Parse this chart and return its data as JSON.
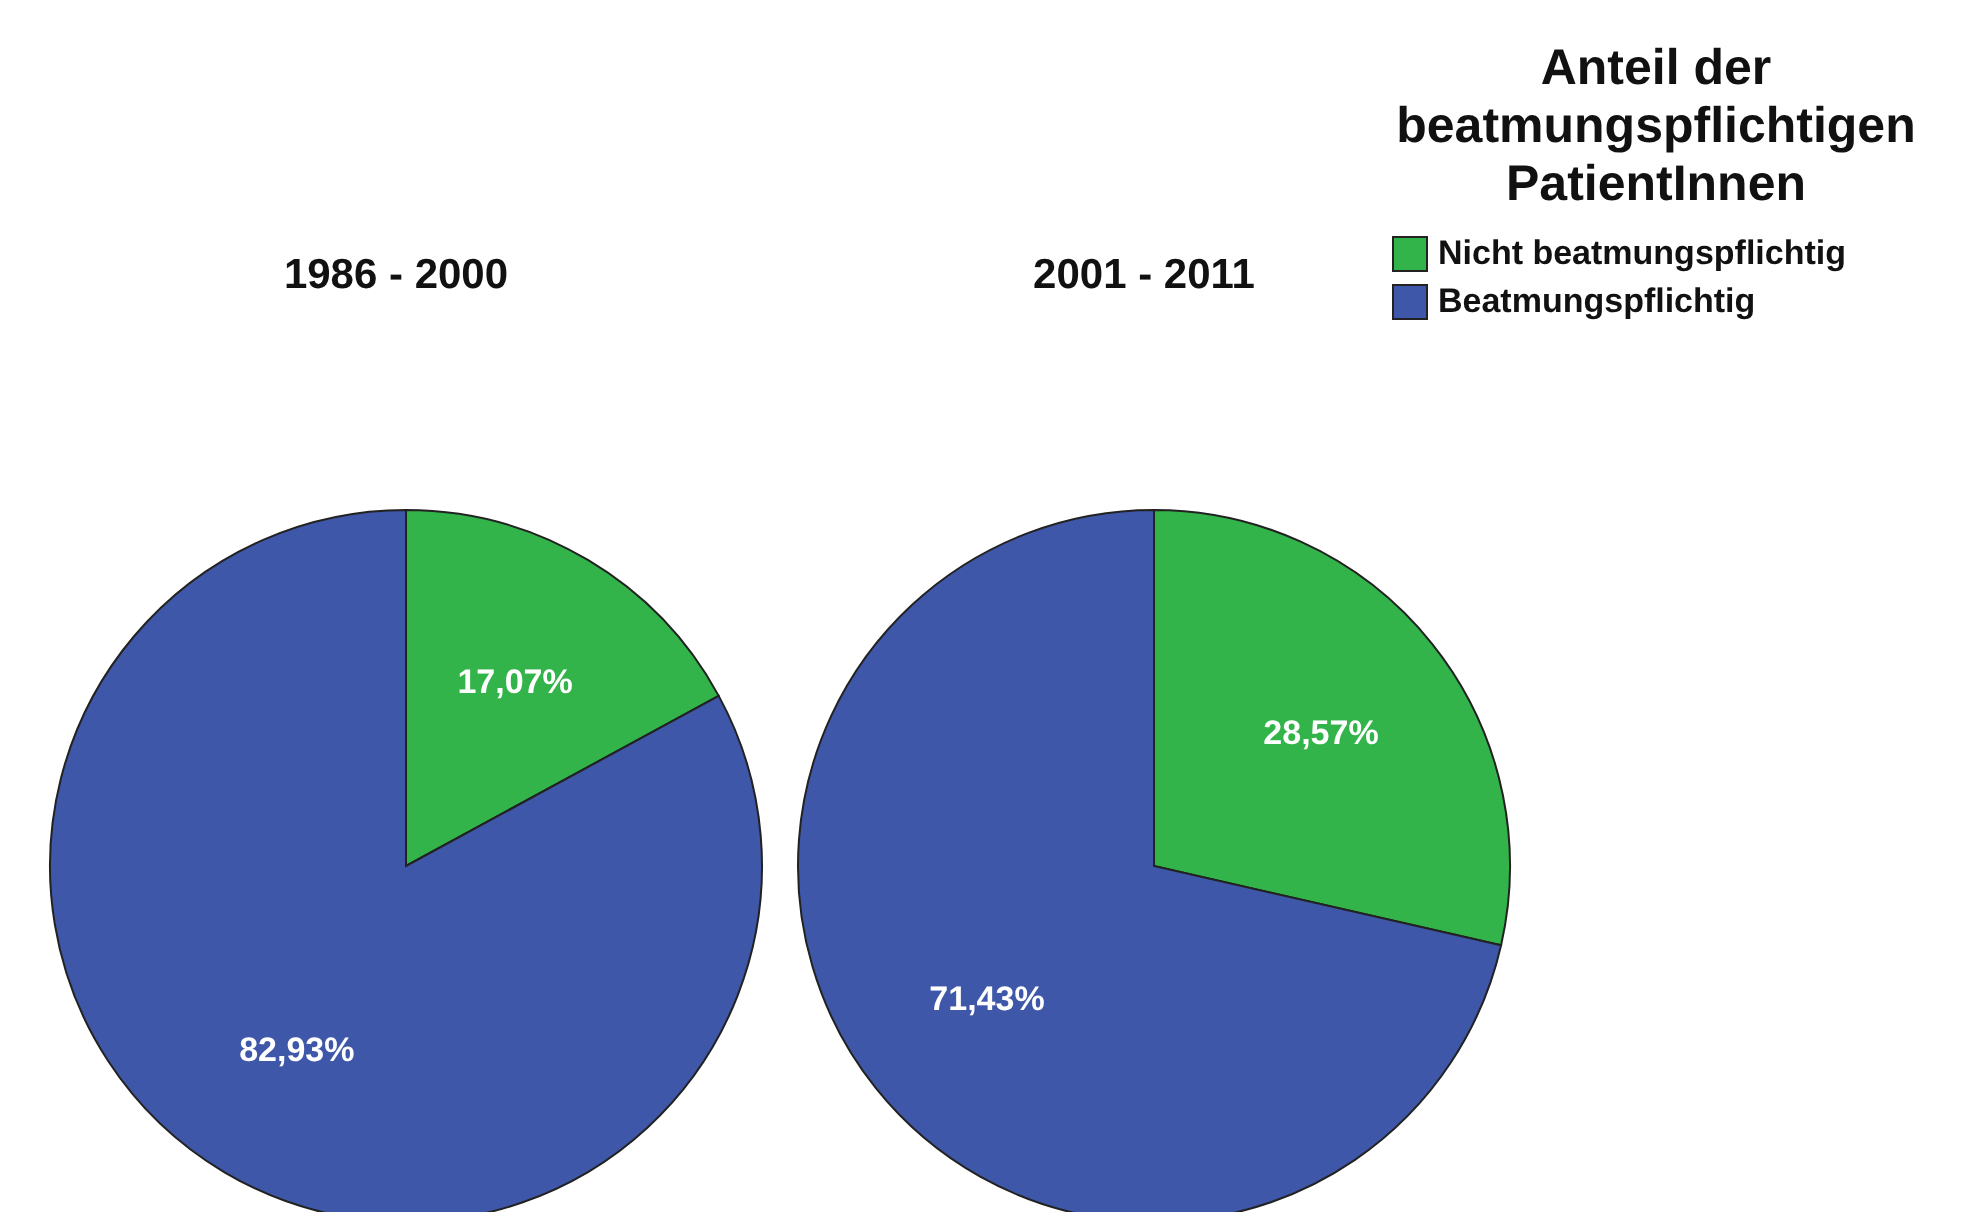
{
  "chart_data": {
    "type": "pie",
    "categories": [
      "Nicht beatmungspflichtig",
      "Beatmungspflichtig"
    ],
    "colors": [
      "#33b44a",
      "#3f57a8"
    ],
    "legend": "top right",
    "legend_title": "Anteil der beatmungspflichtigen PatientInnen",
    "series": [
      {
        "name": "1986 - 2000",
        "values": [
          17.07,
          82.93
        ],
        "value_labels": [
          "17,07%",
          "82,93%"
        ]
      },
      {
        "name": "2001 - 2011",
        "values": [
          28.57,
          71.43
        ],
        "value_labels": [
          "28,57%",
          "71,43%"
        ]
      }
    ]
  }
}
